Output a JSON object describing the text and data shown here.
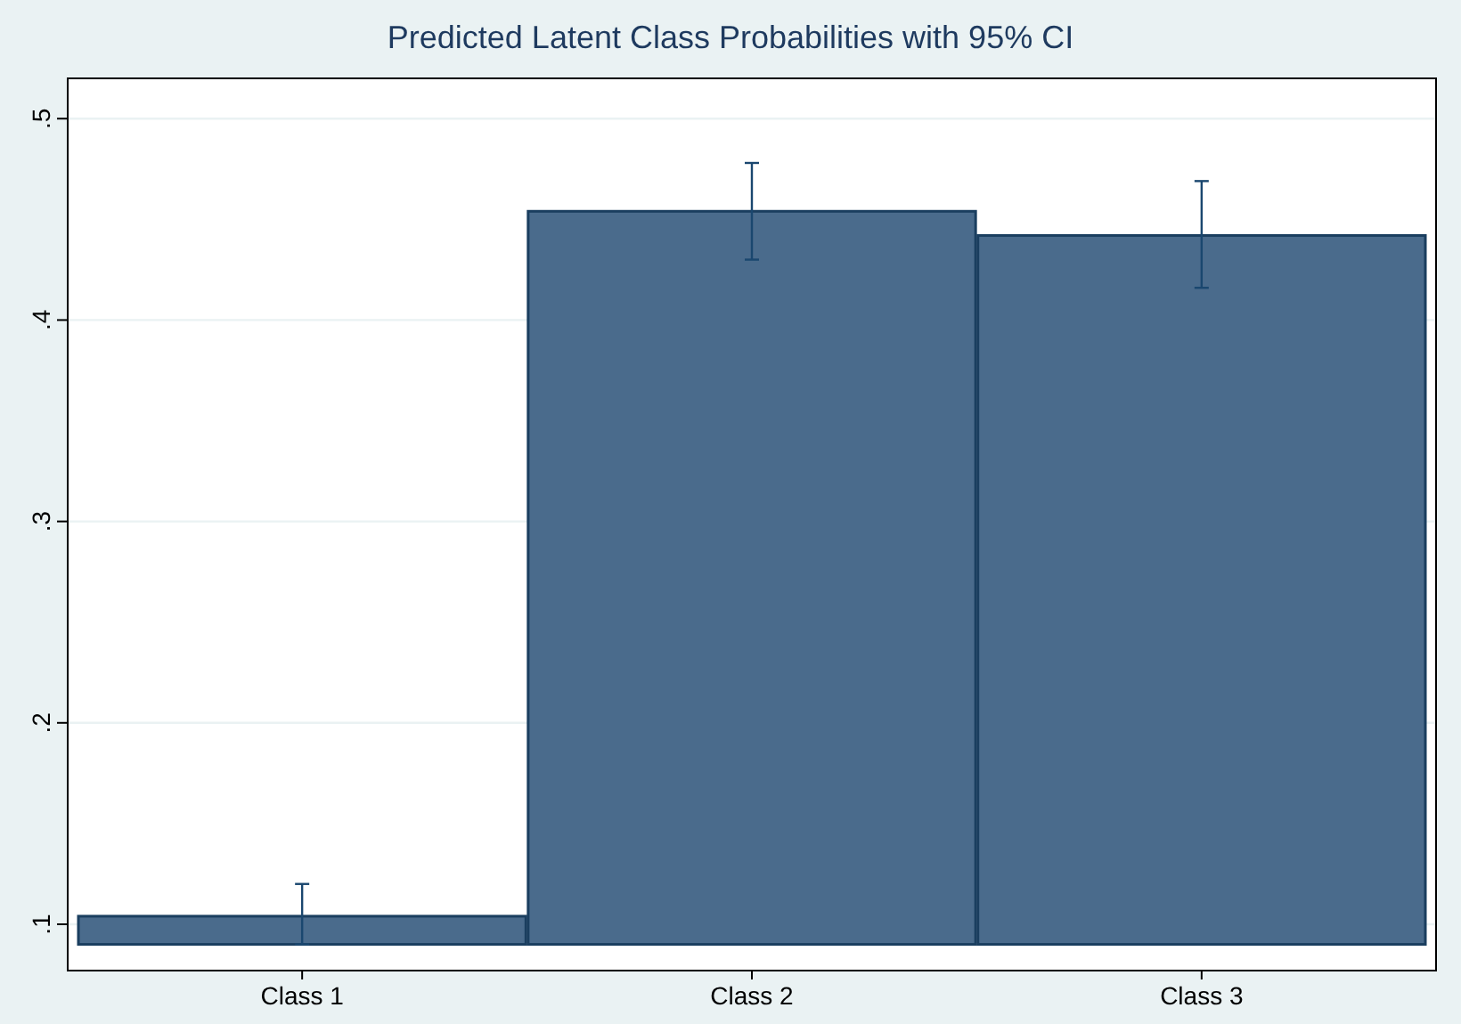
{
  "chart_data": {
    "type": "bar",
    "title": "Predicted Latent Class Probabilities with 95% CI",
    "categories": [
      "Class 1",
      "Class 2",
      "Class 3"
    ],
    "base": [
      0.09,
      0.09,
      0.09
    ],
    "values": [
      0.014,
      0.364,
      0.352
    ],
    "errors": [
      [
        0.09,
        0.12
      ],
      [
        0.43,
        0.478
      ],
      [
        0.416,
        0.469
      ]
    ],
    "color": "#4a6b8c",
    "ylim": [
      0.077,
      0.52
    ],
    "yticks": [
      {
        "value": 0.1,
        "label": ".1"
      },
      {
        "value": 0.2,
        "label": ".2"
      },
      {
        "value": 0.3,
        "label": ".3"
      },
      {
        "value": 0.4,
        "label": ".4"
      },
      {
        "value": 0.5,
        "label": ".5"
      }
    ],
    "grid": "y"
  }
}
